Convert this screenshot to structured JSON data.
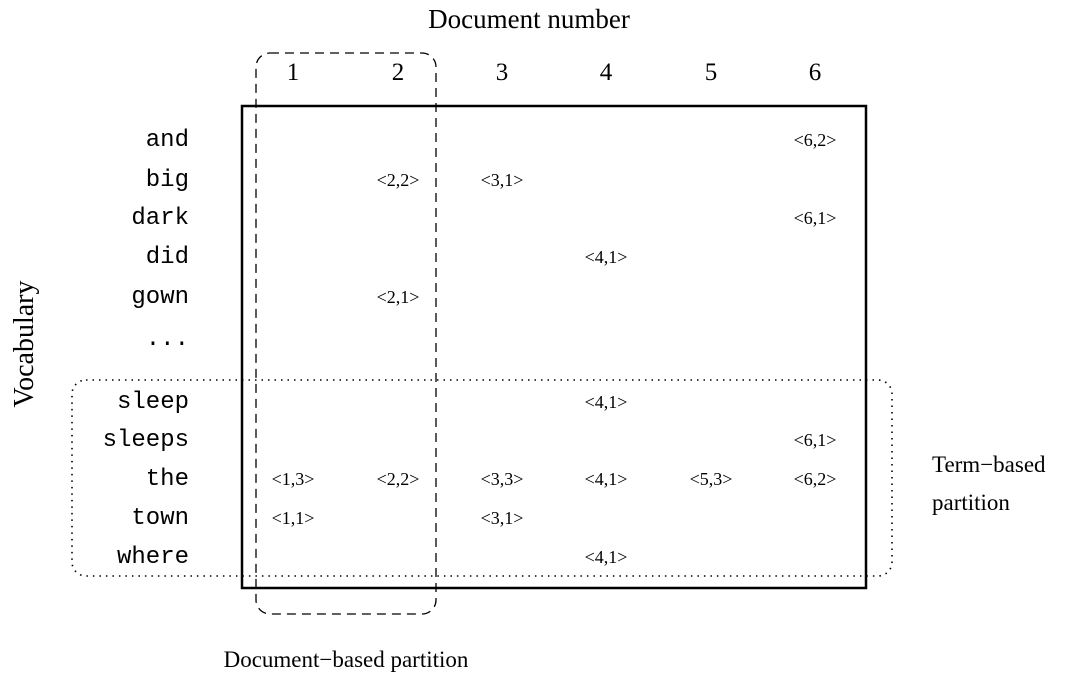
{
  "title": "Document number",
  "y_axis_label": "Vocabulary",
  "document_numbers": [
    "1",
    "2",
    "3",
    "4",
    "5",
    "6"
  ],
  "vocabulary": [
    "and",
    "big",
    "dark",
    "did",
    "gown",
    "...",
    "sleep",
    "sleeps",
    "the",
    "town",
    "where"
  ],
  "postings": {
    "and": [
      "",
      "",
      "",
      "",
      "",
      "<6,2>"
    ],
    "big": [
      "",
      "<2,2>",
      "<3,1>",
      "",
      "",
      ""
    ],
    "dark": [
      "",
      "",
      "",
      "",
      "",
      "<6,1>"
    ],
    "did": [
      "",
      "",
      "",
      "<4,1>",
      "",
      ""
    ],
    "gown": [
      "",
      "<2,1>",
      "",
      "",
      "",
      ""
    ],
    "...": [
      "",
      "",
      "",
      "",
      "",
      ""
    ],
    "sleep": [
      "",
      "",
      "",
      "<4,1>",
      "",
      ""
    ],
    "sleeps": [
      "",
      "",
      "",
      "",
      "",
      "<6,1>"
    ],
    "the": [
      "<1,3>",
      "<2,2>",
      "<3,3>",
      "<4,1>",
      "<5,3>",
      "<6,2>"
    ],
    "town": [
      "<1,1>",
      "",
      "<3,1>",
      "",
      "",
      ""
    ],
    "where": [
      "",
      "",
      "",
      "<4,1>",
      "",
      ""
    ]
  },
  "term_partition_label": [
    "Term−based",
    "partition"
  ],
  "document_partition_label": "Document−based partition",
  "colors": {
    "ink": "#000000",
    "background": "#ffffff"
  }
}
